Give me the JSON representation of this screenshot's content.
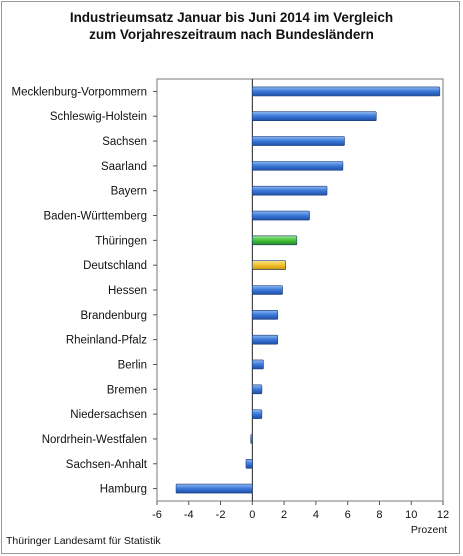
{
  "chart_data": {
    "type": "bar",
    "orientation": "horizontal",
    "title_line1": "Industrieumsatz Januar bis Juni 2014  im Vergleich",
    "title_line2": "zum Vorjahreszeitraum nach Bundesländern",
    "unit_label": "Prozent",
    "categories": [
      "Mecklenburg-Vorpommern",
      "Schleswig-Holstein",
      "Sachsen",
      "Saarland",
      "Bayern",
      "Baden-Württemberg",
      "Thüringen",
      "Deutschland",
      "Hessen",
      "Brandenburg",
      "Rheinland-Pfalz",
      "Berlin",
      "Bremen",
      "Niedersachsen",
      "Nordrhein-Westfalen",
      "Sachsen-Anhalt",
      "Hamburg"
    ],
    "values": [
      11.8,
      7.8,
      5.8,
      5.7,
      4.7,
      3.6,
      2.8,
      2.1,
      1.9,
      1.6,
      1.6,
      0.7,
      0.6,
      0.6,
      -0.1,
      -0.4,
      -4.8
    ],
    "xlim": [
      -6,
      12
    ],
    "xticks": [
      -6,
      -4,
      -2,
      0,
      2,
      4,
      6,
      8,
      10,
      12
    ],
    "grid": false,
    "colors": {
      "default": "#3a78d8",
      "Thüringen": "#43c13a",
      "Deutschland": "#f2c02c"
    }
  },
  "footer": "Thüringer Landesamt für Statistik"
}
